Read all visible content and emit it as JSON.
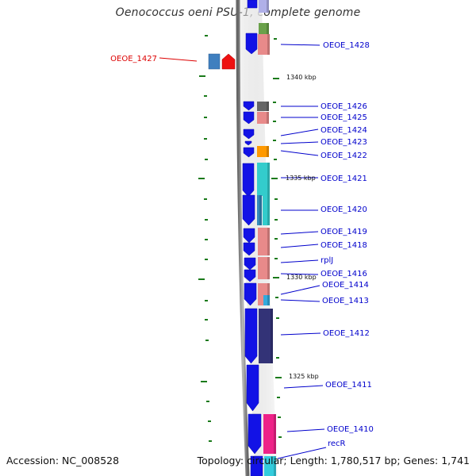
{
  "title": "Oenococcus oeni PSU-1, complete genome",
  "footer": {
    "accession": "Accession: NC_008528",
    "topology": "Topology: circular; Length: 1,780,517 bp; Genes: 1,741"
  },
  "colors": {
    "gene_label": "#0000cc",
    "highlight_label": "#dd0000",
    "cds_arrow": "#1212e6",
    "backbone": "#888888",
    "tick": "#1a7a1a"
  },
  "kbp_markers": [
    {
      "label": "1340 kbp"
    },
    {
      "label": "1335 kbp"
    },
    {
      "label": "1330 kbp"
    },
    {
      "label": "1325 kbp"
    }
  ],
  "genes": [
    {
      "label": "OEOE_1428"
    },
    {
      "label": "OEOE_1427",
      "highlight": true
    },
    {
      "label": "OEOE_1426"
    },
    {
      "label": "OEOE_1425"
    },
    {
      "label": "OEOE_1424"
    },
    {
      "label": "OEOE_1423"
    },
    {
      "label": "OEOE_1422"
    },
    {
      "label": "OEOE_1421"
    },
    {
      "label": "OEOE_1420"
    },
    {
      "label": "OEOE_1419"
    },
    {
      "label": "OEOE_1418"
    },
    {
      "label": "rplJ"
    },
    {
      "label": "OEOE_1416"
    },
    {
      "label": "OEOE_1414"
    },
    {
      "label": "OEOE_1413"
    },
    {
      "label": "OEOE_1412"
    },
    {
      "label": "OEOE_1411"
    },
    {
      "label": "OEOE_1410"
    },
    {
      "label": "recR"
    }
  ]
}
